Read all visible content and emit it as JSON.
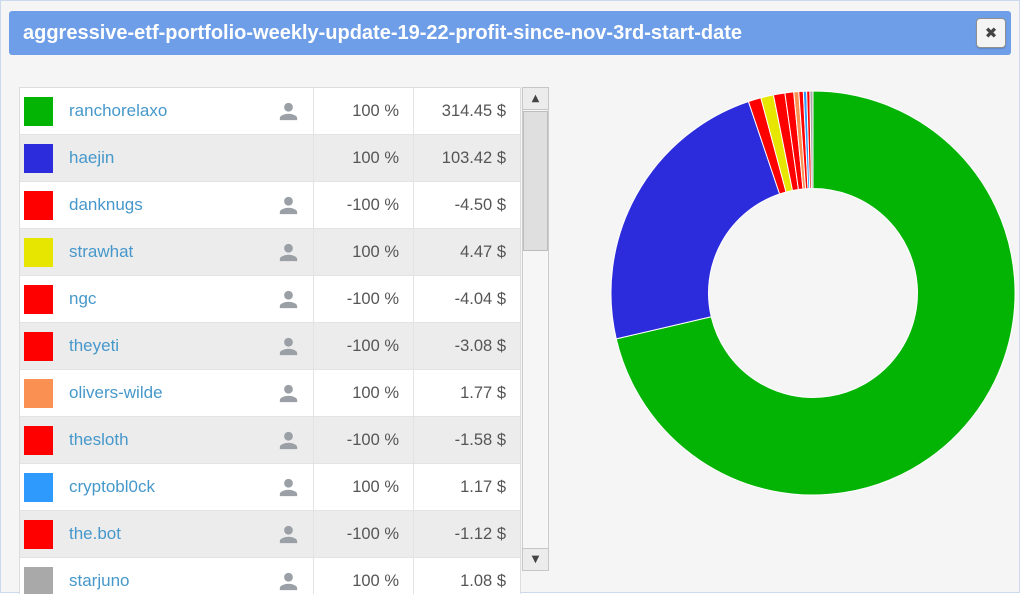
{
  "colors": {
    "header_blue": "#6f9ee8",
    "link_blue": "#4698cb",
    "row_stripe": "#ececec",
    "positive_green": "#04b404",
    "negative_red": "#ff0000"
  },
  "modal": {
    "title": "aggressive-etf-portfolio-weekly-update-19-22-profit-since-nov-3rd-start-date",
    "close_glyph": "✖"
  },
  "scrollbar": {
    "up_glyph": "▲",
    "down_glyph": "▼"
  },
  "table": {
    "rows": [
      {
        "name": "ranchorelaxo",
        "color": "#04b404",
        "has_user_icon": true,
        "percent": "100 %",
        "amount": "314.45 $"
      },
      {
        "name": "haejin",
        "color": "#2c2cdc",
        "has_user_icon": false,
        "percent": "100 %",
        "amount": "103.42 $"
      },
      {
        "name": "danknugs",
        "color": "#ff0000",
        "has_user_icon": true,
        "percent": "-100 %",
        "amount": "-4.50 $"
      },
      {
        "name": "strawhat",
        "color": "#e6e600",
        "has_user_icon": true,
        "percent": "100 %",
        "amount": "4.47 $"
      },
      {
        "name": "ngc",
        "color": "#ff0000",
        "has_user_icon": true,
        "percent": "-100 %",
        "amount": "-4.04 $"
      },
      {
        "name": "theyeti",
        "color": "#ff0000",
        "has_user_icon": true,
        "percent": "-100 %",
        "amount": "-3.08 $"
      },
      {
        "name": "olivers-wilde",
        "color": "#fa9153",
        "has_user_icon": true,
        "percent": "100 %",
        "amount": "1.77 $"
      },
      {
        "name": "thesloth",
        "color": "#ff0000",
        "has_user_icon": true,
        "percent": "-100 %",
        "amount": "-1.58 $"
      },
      {
        "name": "cryptobl0ck",
        "color": "#2e9afe",
        "has_user_icon": true,
        "percent": "100 %",
        "amount": "1.17 $"
      },
      {
        "name": "the.bot",
        "color": "#ff0000",
        "has_user_icon": true,
        "percent": "-100 %",
        "amount": "-1.12 $"
      },
      {
        "name": "starjuno",
        "color": "#a9a9a9",
        "has_user_icon": true,
        "percent": "100 %",
        "amount": "1.08 $"
      }
    ]
  },
  "chart_data": {
    "type": "pie",
    "subtype": "donut",
    "title": "",
    "legend_position": "table-left",
    "start_angle_deg": 0,
    "direction": "clockwise-from-top",
    "value_transform": "absolute",
    "labels": [
      "ranchorelaxo",
      "haejin",
      "danknugs",
      "strawhat",
      "ngc",
      "theyeti",
      "olivers-wilde",
      "thesloth",
      "cryptobl0ck",
      "the.bot",
      "starjuno"
    ],
    "values": [
      314.45,
      103.42,
      -4.5,
      4.47,
      -4.04,
      -3.08,
      1.77,
      -1.58,
      1.17,
      -1.12,
      1.08
    ],
    "colors": [
      "#04b404",
      "#2c2cdc",
      "#ff0000",
      "#e6e600",
      "#ff0000",
      "#ff0000",
      "#fa9153",
      "#ff0000",
      "#2e9afe",
      "#ff0000",
      "#a9a9a9"
    ]
  }
}
